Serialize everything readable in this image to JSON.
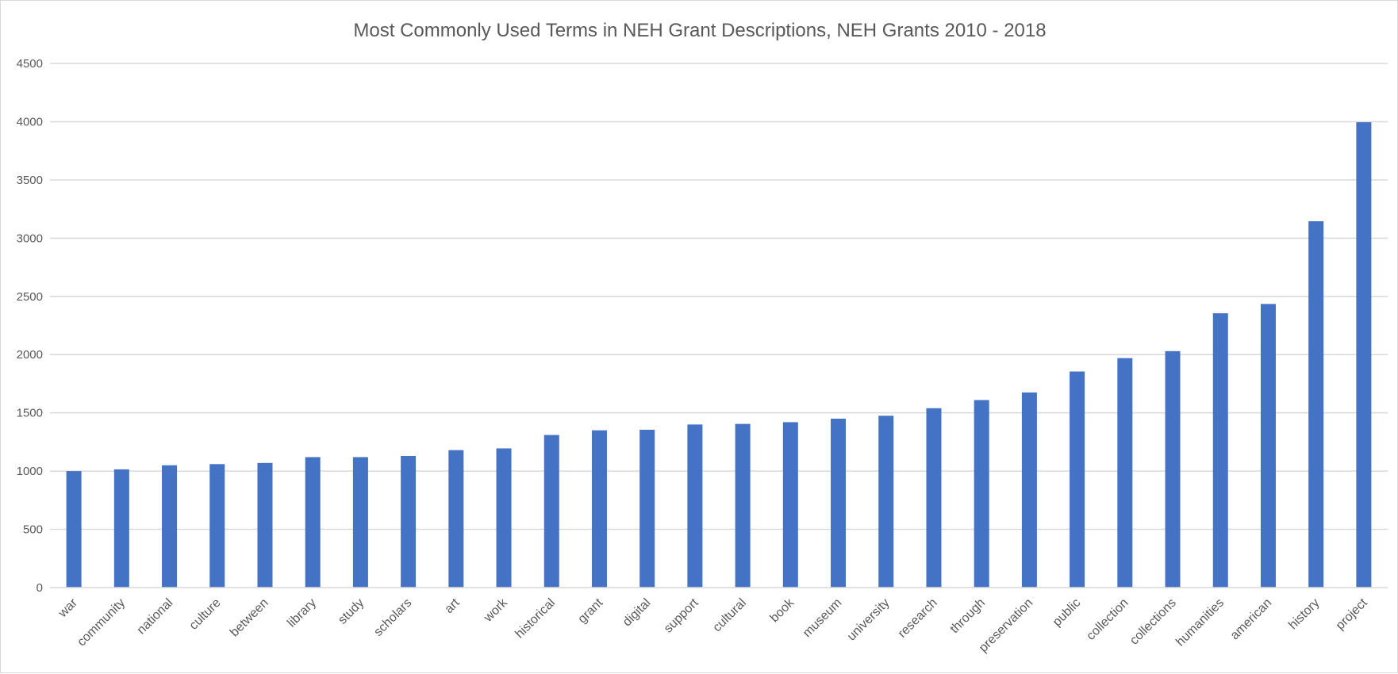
{
  "chart_data": {
    "type": "bar",
    "title": "Most Commonly Used Terms in NEH Grant Descriptions, NEH Grants 2010 - 2018",
    "xlabel": "",
    "ylabel": "",
    "ylim": [
      0,
      4500
    ],
    "yticks": [
      0,
      500,
      1000,
      1500,
      2000,
      2500,
      3000,
      3500,
      4000,
      4500
    ],
    "grid": true,
    "legend": "none",
    "bar_color": "#4472C4",
    "gridline_color": "#d9d9d9",
    "categories": [
      "war",
      "community",
      "national",
      "culture",
      "between",
      "library",
      "study",
      "scholars",
      "art",
      "work",
      "historical",
      "grant",
      "digital",
      "support",
      "cultural",
      "book",
      "museum",
      "university",
      "research",
      "through",
      "preservation",
      "public",
      "collection",
      "collections",
      "humanities",
      "american",
      "history",
      "project"
    ],
    "values": [
      1000,
      1015,
      1050,
      1060,
      1070,
      1120,
      1120,
      1130,
      1180,
      1195,
      1310,
      1350,
      1355,
      1400,
      1405,
      1420,
      1450,
      1475,
      1540,
      1610,
      1675,
      1855,
      1970,
      2030,
      2355,
      2435,
      3145,
      3995
    ]
  }
}
